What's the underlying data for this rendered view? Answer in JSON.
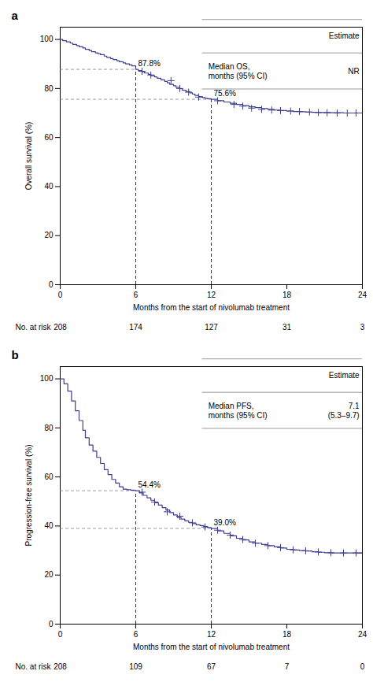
{
  "chart_data": [
    {
      "type": "step",
      "title": "a",
      "xlabel": "Months from the start of nivolumab treatment",
      "ylabel": "Overall survival (%)",
      "xlim": [
        0,
        24
      ],
      "ylim": [
        0,
        105
      ],
      "xticks": [
        0,
        6,
        12,
        18,
        24
      ],
      "yticks": [
        0,
        20,
        40,
        60,
        80,
        100
      ],
      "grid": false,
      "series": [
        {
          "type": "step",
          "color": "#3f3f8f",
          "x": [
            0,
            0.2,
            0.5,
            0.8,
            1.0,
            1.3,
            1.5,
            1.8,
            2.0,
            2.3,
            2.5,
            2.8,
            3.0,
            3.2,
            3.5,
            3.7,
            4.0,
            4.2,
            4.5,
            4.7,
            5.0,
            5.2,
            5.5,
            5.7,
            6.0,
            6.2,
            6.5,
            6.7,
            7.0,
            7.2,
            7.5,
            7.7,
            8.0,
            8.3,
            8.5,
            8.7,
            9.0,
            9.2,
            9.5,
            9.7,
            10.0,
            10.3,
            10.5,
            10.7,
            11.0,
            11.3,
            11.5,
            11.7,
            12.0,
            12.5,
            13.0,
            13.5,
            14.0,
            14.5,
            15.0,
            15.5,
            16.0,
            16.5,
            17.0,
            17.5,
            18.0,
            18.5,
            19.0,
            19.5,
            20.0,
            20.5,
            21.0,
            21.5,
            22.0,
            22.5,
            23.0,
            23.5,
            24.0
          ],
          "values": [
            100,
            99.5,
            99.0,
            98.5,
            98.0,
            97.5,
            97.0,
            96.5,
            96.0,
            95.5,
            95.0,
            94.5,
            94.2,
            93.8,
            93.2,
            92.7,
            92.2,
            91.8,
            91.3,
            90.9,
            90.4,
            90.0,
            89.6,
            89.2,
            87.8,
            87.3,
            86.8,
            86.3,
            85.8,
            85.2,
            84.7,
            84.2,
            83.5,
            82.9,
            82.3,
            81.7,
            81.1,
            80.5,
            79.9,
            79.3,
            78.7,
            78.2,
            77.7,
            77.2,
            76.7,
            76.3,
            76.0,
            75.8,
            75.6,
            75.0,
            74.5,
            74.0,
            73.5,
            73.0,
            72.5,
            72.2,
            71.8,
            71.5,
            71.2,
            71.0,
            70.8,
            70.6,
            70.5,
            70.4,
            70.3,
            70.2,
            70.2,
            70.1,
            70.1,
            70.0,
            70.0,
            70.0,
            70.0
          ]
        },
        {
          "type": "scatter",
          "marker": "plus",
          "color": "#3f3f8f",
          "x": [
            6.5,
            7.2,
            8.8,
            9.5,
            10.2,
            11.0,
            12.5,
            13.8,
            14.5,
            15.2,
            16.0,
            16.8,
            17.5,
            18.3,
            19.0,
            19.8,
            20.5,
            21.2,
            22.0,
            22.8,
            23.5,
            24.0
          ],
          "values": [
            87.0,
            85.5,
            83.2,
            80.0,
            78.5,
            76.5,
            75.0,
            73.5,
            72.8,
            72.0,
            71.5,
            71.2,
            71.0,
            70.8,
            70.6,
            70.4,
            70.2,
            70.1,
            70.0,
            70.0,
            70.0,
            70.0
          ]
        }
      ],
      "annotations": [
        {
          "x": 6,
          "y": 87.8,
          "label": "87.8%"
        },
        {
          "x": 12,
          "y": 75.6,
          "label": "75.6%"
        }
      ],
      "table": {
        "header": "Estimate",
        "rows": [
          {
            "label": "Median OS,\nmonths (95% CI)",
            "value": "NR"
          }
        ]
      },
      "at_risk": {
        "label": "No. at risk",
        "x": [
          0,
          6,
          12,
          18,
          24
        ],
        "values": [
          208,
          174,
          127,
          31,
          3
        ]
      }
    },
    {
      "type": "step",
      "title": "b",
      "xlabel": "Months from the start of nivolumab treatment",
      "ylabel": "Progression-free survival (%)",
      "xlim": [
        0,
        24
      ],
      "ylim": [
        0,
        105
      ],
      "xticks": [
        0,
        6,
        12,
        18,
        24
      ],
      "yticks": [
        0,
        20,
        40,
        60,
        80,
        100
      ],
      "grid": false,
      "series": [
        {
          "type": "step",
          "color": "#3f3f8f",
          "x": [
            0,
            0.3,
            0.6,
            0.9,
            1.2,
            1.5,
            1.8,
            2.0,
            2.3,
            2.6,
            2.9,
            3.2,
            3.5,
            3.8,
            4.1,
            4.4,
            4.7,
            5.0,
            5.3,
            5.6,
            5.9,
            6.0,
            6.3,
            6.6,
            6.9,
            7.2,
            7.5,
            7.8,
            8.1,
            8.4,
            8.7,
            9.0,
            9.3,
            9.6,
            9.9,
            10.2,
            10.5,
            10.8,
            11.1,
            11.4,
            11.7,
            12.0,
            12.5,
            13.0,
            13.5,
            14.0,
            14.5,
            15.0,
            15.5,
            16.0,
            16.5,
            17.0,
            17.5,
            18.0,
            18.5,
            19.0,
            19.5,
            20.0,
            20.5,
            21.0,
            21.5,
            22.0,
            22.5,
            23.0,
            23.5,
            24.0
          ],
          "values": [
            100,
            98.0,
            95.0,
            91.0,
            87.0,
            83.0,
            79.0,
            76.0,
            73.0,
            70.5,
            68.0,
            65.5,
            63.0,
            61.0,
            59.0,
            57.5,
            56.0,
            55.0,
            54.8,
            54.6,
            54.5,
            54.4,
            53.5,
            52.5,
            51.5,
            50.5,
            49.5,
            48.5,
            47.5,
            46.5,
            45.5,
            44.5,
            43.5,
            42.8,
            42.1,
            41.5,
            41.0,
            40.5,
            40.2,
            39.8,
            39.4,
            39.0,
            38.0,
            37.0,
            36.0,
            35.0,
            34.3,
            33.5,
            33.0,
            32.5,
            32.0,
            31.5,
            31.0,
            30.5,
            30.2,
            30.0,
            29.8,
            29.5,
            29.3,
            29.1,
            29.0,
            29.0,
            29.0,
            29.0,
            29.0,
            29.0
          ]
        },
        {
          "type": "scatter",
          "marker": "plus",
          "color": "#3f3f8f",
          "x": [
            6.5,
            7.5,
            8.5,
            9.5,
            10.5,
            11.5,
            12.5,
            13.5,
            14.5,
            15.5,
            16.5,
            17.5,
            18.5,
            19.5,
            20.5,
            21.5,
            22.5,
            23.5,
            24.0
          ],
          "values": [
            53.8,
            49.8,
            45.8,
            44.0,
            41.3,
            39.6,
            38.3,
            36.3,
            34.5,
            33.0,
            32.0,
            31.2,
            30.3,
            29.9,
            29.4,
            29.1,
            29.0,
            29.0,
            29.0
          ]
        }
      ],
      "annotations": [
        {
          "x": 6,
          "y": 54.4,
          "label": "54.4%"
        },
        {
          "x": 12,
          "y": 39.0,
          "label": "39.0%"
        }
      ],
      "table": {
        "header": "Estimate",
        "rows": [
          {
            "label": "Median PFS,\nmonths (95% CI)",
            "value": "7.1\n(5.3–9.7)"
          }
        ]
      },
      "at_risk": {
        "label": "No. at risk",
        "x": [
          0,
          6,
          12,
          18,
          24
        ],
        "values": [
          208,
          109,
          67,
          7,
          0
        ]
      }
    }
  ]
}
